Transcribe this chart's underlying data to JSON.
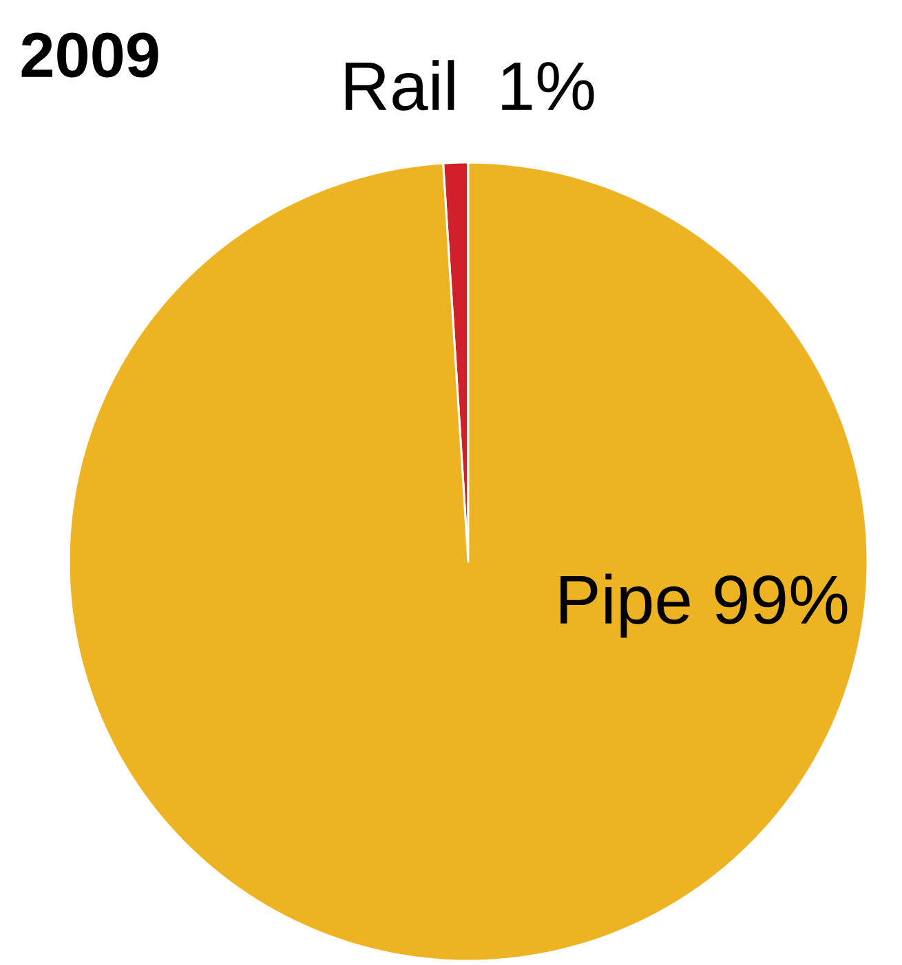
{
  "chart_data": {
    "type": "pie",
    "title": "2009",
    "categories": [
      "Rail",
      "Pipe"
    ],
    "values": [
      1,
      99
    ],
    "colors": [
      "#d0202a",
      "#eeb322"
    ],
    "value_labels": [
      "1%",
      "99%"
    ]
  }
}
